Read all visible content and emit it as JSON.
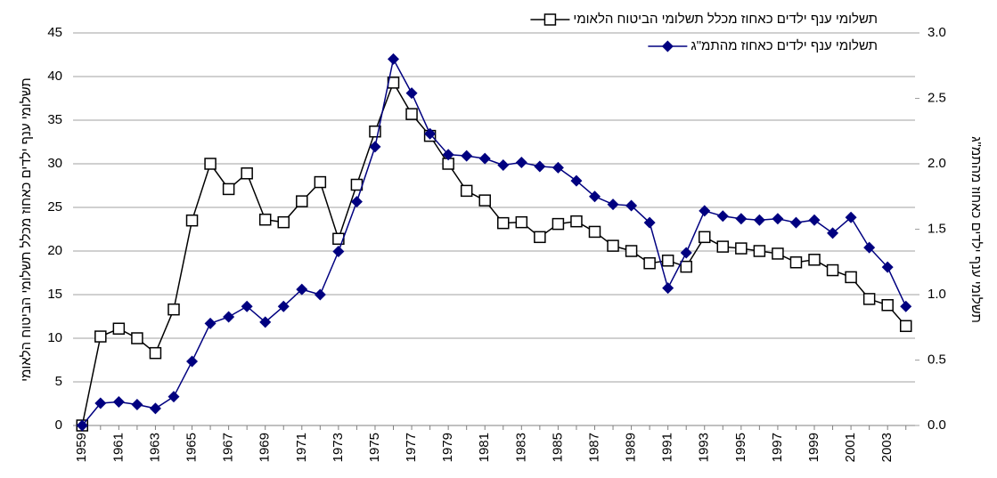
{
  "chart_data": {
    "type": "line",
    "categories": [
      "1959",
      null,
      "1961",
      null,
      "1963",
      null,
      "1965",
      null,
      "1967",
      null,
      "1969",
      null,
      "1971",
      null,
      "1973",
      null,
      "1975",
      null,
      "1977",
      null,
      "1979",
      null,
      "1981",
      null,
      "1983",
      null,
      "1985",
      null,
      "1987",
      null,
      "1989",
      null,
      "1991",
      null,
      "1993",
      null,
      "1995",
      null,
      "1997",
      null,
      "1999",
      null,
      "2001",
      null,
      "2003",
      null
    ],
    "series": [
      {
        "name": "תשלומי ענף ילדים כאחוז מכלל תשלומי הביטוח הלאומי",
        "color": "#000000",
        "marker": "square",
        "values": [
          0,
          10.2,
          11.1,
          10.0,
          8.3,
          13.3,
          23.5,
          30.0,
          27.1,
          28.9,
          23.6,
          23.3,
          25.7,
          27.9,
          21.4,
          27.6,
          33.7,
          39.3,
          35.7,
          33.2,
          30.0,
          26.9,
          25.8,
          23.2,
          23.3,
          21.6,
          23.1,
          23.4,
          22.2,
          20.6,
          20.0,
          18.6,
          18.9,
          18.2,
          21.6,
          20.5,
          20.3,
          20.0,
          19.7,
          18.7,
          19.0,
          17.8,
          17.0,
          14.5,
          13.8,
          11.4
        ]
      },
      {
        "name": "תשלומי ענף ילדים כאחוז מהתמ\"ג",
        "color": "#000080",
        "marker": "diamond",
        "axis": "y2",
        "values": [
          0,
          0.17,
          0.18,
          0.16,
          0.13,
          0.22,
          0.49,
          0.78,
          0.83,
          0.91,
          0.79,
          0.91,
          1.04,
          1.0,
          1.33,
          1.71,
          2.13,
          2.8,
          2.54,
          2.23,
          2.07,
          2.06,
          2.04,
          1.99,
          2.01,
          1.98,
          1.97,
          1.87,
          1.75,
          1.69,
          1.68,
          1.55,
          1.05,
          1.32,
          1.64,
          1.6,
          1.58,
          1.57,
          1.58,
          1.55,
          1.57,
          1.47,
          1.59,
          1.36,
          1.21,
          0.91
        ]
      }
    ],
    "ylabel": "תשלומי ענף ילדים כאחוז מכלל תשלומי הביטוח הלאומי",
    "y2label": "תשלומי ענף ילדים כאחוז מהתמ\"ג",
    "ylim": [
      0,
      45
    ],
    "yticks": [
      0,
      5,
      10,
      15,
      20,
      25,
      30,
      35,
      40,
      45
    ],
    "y2lim": [
      0,
      3
    ],
    "y2ticks": [
      {
        "value": 0,
        "label": "0.0"
      },
      0.5,
      {
        "value": 1,
        "label": "1.0"
      },
      1.5,
      {
        "value": 2,
        "label": "2.0"
      },
      2.5,
      {
        "value": 3,
        "label": "3.0"
      }
    ],
    "grid": true,
    "legend": "top-right"
  }
}
